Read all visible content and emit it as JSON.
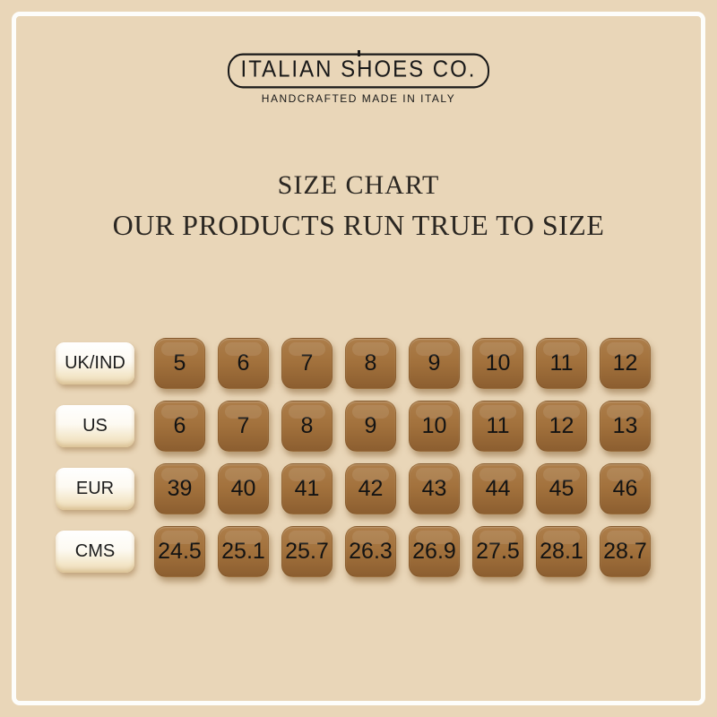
{
  "brand": {
    "name": "ITALIAN SHOES CO.",
    "tagline": "HANDCRAFTED MADE IN ITALY"
  },
  "header": {
    "title": "SIZE CHART",
    "subtitle": "OUR PRODUCTS RUN TRUE TO SIZE"
  },
  "chart_data": {
    "type": "table",
    "title": "SIZE CHART",
    "subtitle": "OUR PRODUCTS RUN TRUE TO SIZE",
    "row_headers": [
      "UK/IND",
      "US",
      "EUR",
      "CMS"
    ],
    "rows": [
      {
        "label": "UK/IND",
        "values": [
          "5",
          "6",
          "7",
          "8",
          "9",
          "10",
          "11",
          "12"
        ]
      },
      {
        "label": "US",
        "values": [
          "6",
          "7",
          "8",
          "9",
          "10",
          "11",
          "12",
          "13"
        ]
      },
      {
        "label": "EUR",
        "values": [
          "39",
          "40",
          "41",
          "42",
          "43",
          "44",
          "45",
          "46"
        ]
      },
      {
        "label": "CMS",
        "values": [
          "24.5",
          "25.1",
          "25.7",
          "26.3",
          "26.9",
          "27.5",
          "28.1",
          "28.7"
        ]
      }
    ]
  },
  "colors": {
    "background": "#e9d6b8",
    "frame": "#fdfdfb",
    "tile_brown": "#a2713c",
    "tile_brown_dark": "#8c5e30",
    "header_pill": "#fdfaf2",
    "text_dark": "#1c1c1c"
  }
}
